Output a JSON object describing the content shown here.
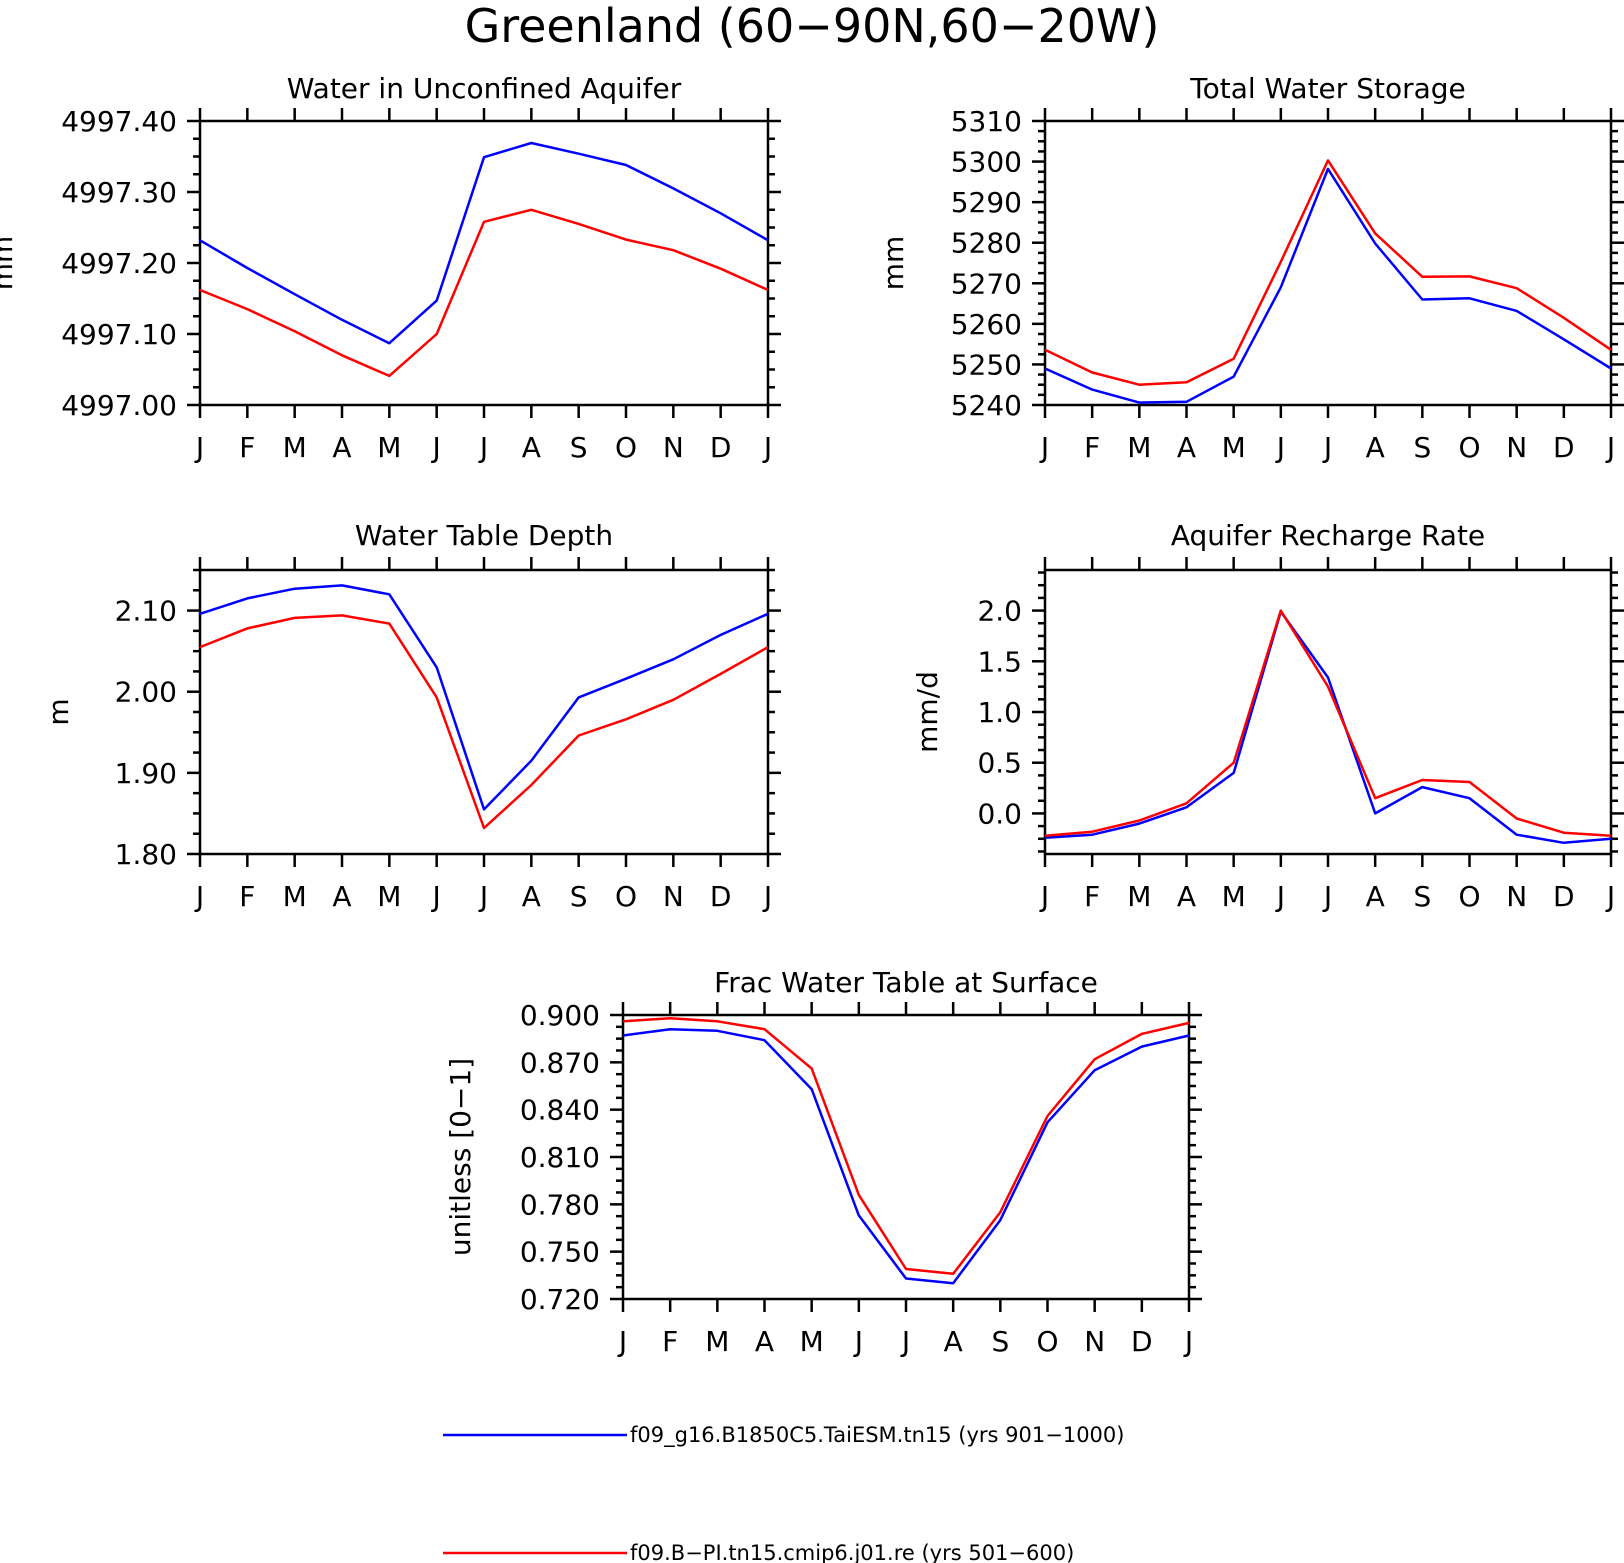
{
  "figure_title": "Greenland (60−90N,60−20W)",
  "legend": [
    {
      "label": "f09_g16.B1850C5.TaiESM.tn15 (yrs 901−1000)",
      "color": "#0000ff"
    },
    {
      "label": "f09.B−PI.tn15.cmip6.j01.re (yrs 501−600)",
      "color": "#ff0000"
    }
  ],
  "chart_data": [
    {
      "type": "line",
      "title": "Water in Unconfined Aquifer",
      "ylabel": "mm",
      "categories": [
        "J",
        "F",
        "M",
        "A",
        "M",
        "J",
        "J",
        "A",
        "S",
        "O",
        "N",
        "D",
        "J"
      ],
      "ylim": [
        4997.0,
        4997.4
      ],
      "yticks": [
        "4997.40",
        "4997.30",
        "4997.20",
        "4997.10",
        "4997.00"
      ],
      "series": [
        {
          "color": "#0000ff",
          "values": [
            4997.232,
            4997.193,
            4997.156,
            4997.12,
            4997.087,
            4997.147,
            4997.349,
            4997.369,
            4997.354,
            4997.338,
            4997.305,
            4997.27,
            4997.232
          ]
        },
        {
          "color": "#ff0000",
          "values": [
            4997.162,
            4997.135,
            4997.104,
            4997.07,
            4997.041,
            4997.1,
            4997.258,
            4997.275,
            4997.255,
            4997.233,
            4997.218,
            4997.192,
            4997.162
          ]
        }
      ]
    },
    {
      "type": "line",
      "title": "Total Water Storage",
      "ylabel": "mm",
      "categories": [
        "J",
        "F",
        "M",
        "A",
        "M",
        "J",
        "J",
        "A",
        "S",
        "O",
        "N",
        "D",
        "J"
      ],
      "ylim": [
        5240,
        5310
      ],
      "yticks": [
        "5310",
        "5300",
        "5290",
        "5280",
        "5270",
        "5260",
        "5250",
        "5240"
      ],
      "series": [
        {
          "color": "#0000ff",
          "values": [
            5249,
            5243.8,
            5240.6,
            5240.8,
            5247,
            5269,
            5298.2,
            5279.8,
            5266,
            5266.3,
            5263.2,
            5256.2,
            5249
          ]
        },
        {
          "color": "#ff0000",
          "values": [
            5253.6,
            5248,
            5245,
            5245.6,
            5251.4,
            5275.3,
            5300.3,
            5282.3,
            5271.6,
            5271.7,
            5268.8,
            5261.5,
            5253.6
          ]
        }
      ]
    },
    {
      "type": "line",
      "title": "Water Table Depth",
      "ylabel": "m",
      "categories": [
        "J",
        "F",
        "M",
        "A",
        "M",
        "J",
        "J",
        "A",
        "S",
        "O",
        "N",
        "D",
        "J"
      ],
      "ylim": [
        1.8,
        2.15
      ],
      "yticks": [
        "2.10",
        "2.00",
        "1.90",
        "1.80"
      ],
      "series": [
        {
          "color": "#0000ff",
          "values": [
            2.096,
            2.115,
            2.127,
            2.131,
            2.12,
            2.03,
            1.855,
            1.915,
            1.993,
            2.016,
            2.04,
            2.07,
            2.096
          ]
        },
        {
          "color": "#ff0000",
          "values": [
            2.055,
            2.078,
            2.091,
            2.094,
            2.084,
            1.993,
            1.832,
            1.885,
            1.946,
            1.966,
            1.99,
            2.022,
            2.055
          ]
        }
      ]
    },
    {
      "type": "line",
      "title": "Aquifer Recharge Rate",
      "ylabel": "mm/d",
      "categories": [
        "J",
        "F",
        "M",
        "A",
        "M",
        "J",
        "J",
        "A",
        "S",
        "O",
        "N",
        "D",
        "J"
      ],
      "ylim": [
        -0.4,
        2.4
      ],
      "yticks": [
        "2.0",
        "1.5",
        "1.0",
        "0.5",
        "0.0"
      ],
      "series": [
        {
          "color": "#0000ff",
          "values": [
            -0.24,
            -0.21,
            -0.1,
            0.06,
            0.4,
            1.99,
            1.34,
            0.0,
            0.26,
            0.15,
            -0.21,
            -0.29,
            -0.25
          ]
        },
        {
          "color": "#ff0000",
          "values": [
            -0.22,
            -0.18,
            -0.07,
            0.1,
            0.5,
            2.0,
            1.25,
            0.15,
            0.33,
            0.31,
            -0.05,
            -0.19,
            -0.22
          ]
        }
      ]
    },
    {
      "type": "line",
      "title": "Frac Water Table at Surface",
      "ylabel": "unitless [0−1]",
      "categories": [
        "J",
        "F",
        "M",
        "A",
        "M",
        "J",
        "J",
        "A",
        "S",
        "O",
        "N",
        "D",
        "J"
      ],
      "ylim": [
        0.72,
        0.9
      ],
      "yticks": [
        "0.900",
        "0.870",
        "0.840",
        "0.810",
        "0.780",
        "0.750",
        "0.720"
      ],
      "series": [
        {
          "color": "#0000ff",
          "values": [
            0.887,
            0.891,
            0.89,
            0.884,
            0.853,
            0.773,
            0.733,
            0.73,
            0.77,
            0.832,
            0.865,
            0.88,
            0.887
          ]
        },
        {
          "color": "#ff0000",
          "values": [
            0.896,
            0.898,
            0.896,
            0.891,
            0.866,
            0.786,
            0.739,
            0.736,
            0.775,
            0.836,
            0.872,
            0.888,
            0.895
          ]
        }
      ]
    }
  ]
}
